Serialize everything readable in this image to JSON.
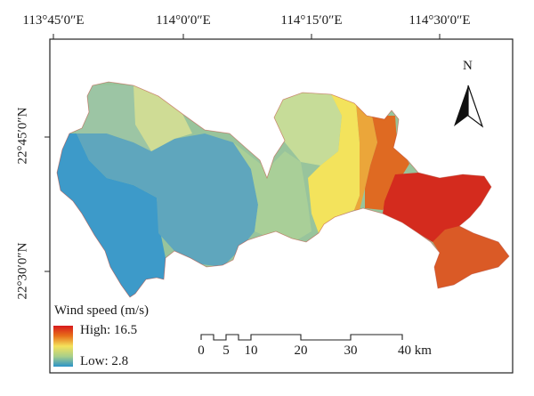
{
  "map": {
    "longitude_labels": [
      "113°45′0″E",
      "114°0′0″E",
      "114°15′0″E",
      "114°30′0″E"
    ],
    "latitude_labels": [
      "22°45′0″N",
      "22°30′0″N"
    ],
    "north_arrow": {
      "letter": "N",
      "icon": "north-arrow-icon"
    },
    "legend": {
      "title": "Wind speed (m/s)",
      "high_label": "High: 16.5",
      "low_label": "Low: 2.8",
      "high_value": 16.5,
      "low_value": 2.8,
      "colors": [
        "#d7191c",
        "#e8701a",
        "#f4e25b",
        "#a8cf8a",
        "#2b93c8"
      ]
    },
    "scale_bar": {
      "labels": [
        "0",
        "5",
        "10",
        "20",
        "30",
        "40 km"
      ],
      "values_km": [
        0,
        5,
        10,
        20,
        30,
        40
      ]
    },
    "colors": {
      "frame": "#222222",
      "west_blue": "#3d9ac9",
      "central_blue": "#5fa6bd",
      "green": "#98c49c",
      "light_green": "#b9d6a0",
      "yellow_green": "#d6e18c",
      "yellow": "#f3e35c",
      "orange_light": "#eba63a",
      "orange": "#df6a22",
      "red": "#d42b1e",
      "south_orange": "#da5a26"
    }
  }
}
